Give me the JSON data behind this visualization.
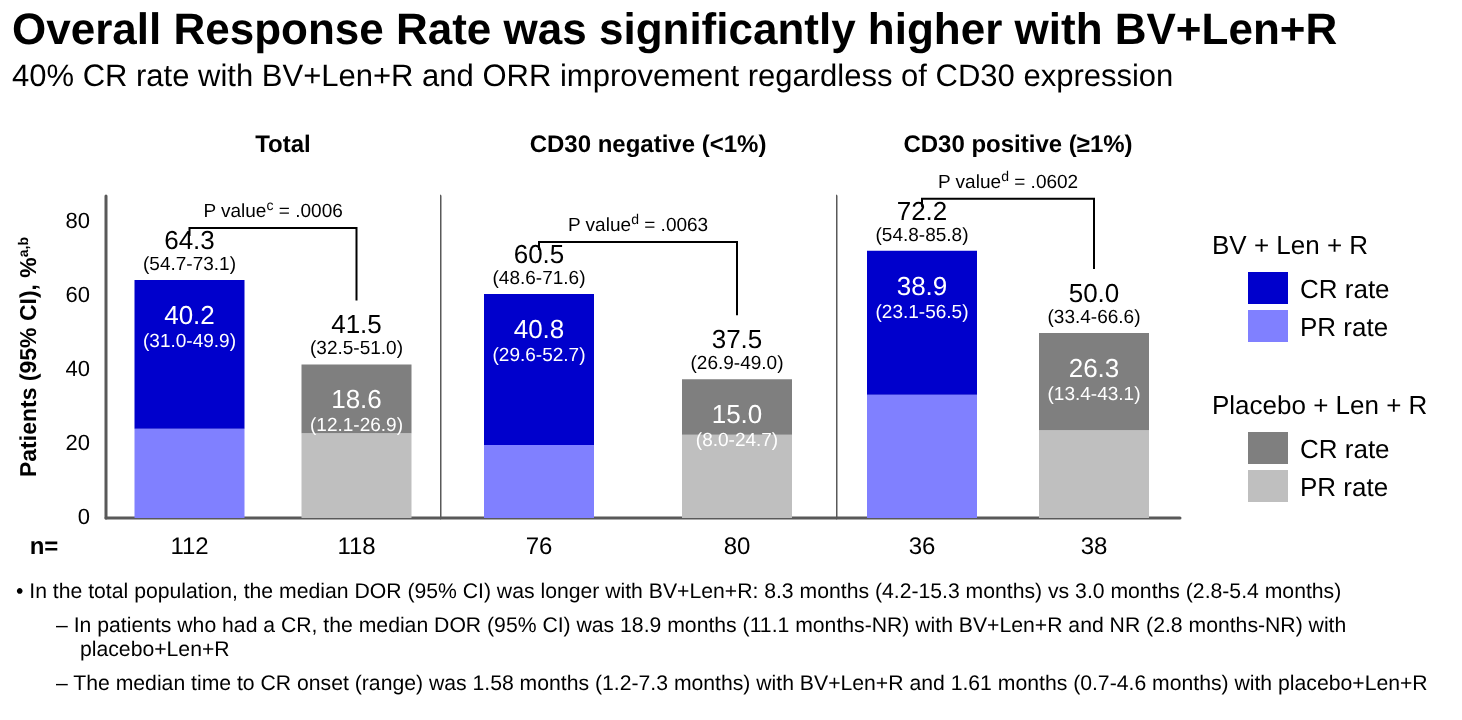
{
  "chart_data": [
    {
      "type": "other",
      "title": "Overall Response Rate was significantly higher with BV+Len+R",
      "subtitle": "40% CR rate with BV+Len+R and ORR improvement regardless of CD30 expression"
    },
    {
      "type": "bar",
      "title": "Total",
      "ylabel": "Patients (95% CI), %$^{a,b}$",
      "xlabel": "n=",
      "stacked": true,
      "categories": [
        "112",
        "118"
      ],
      "ylim": [
        0,
        87
      ],
      "yticks": [
        0,
        20,
        40,
        60,
        80
      ],
      "series": [
        {
          "color": "#8080ff",
          "values": [
            24.1,
            null
          ]
        },
        {
          "color": "#0000cc",
          "values": [
            40.2,
            null
          ],
          "value_labels": [
            "40.2\n(31.0-49.9)",
            null
          ]
        },
        {
          "color": "#bfbfbf",
          "values": [
            null,
            22.9
          ]
        },
        {
          "color": "#7f7f7f",
          "values": [
            null,
            18.6
          ],
          "value_labels": [
            null,
            "18.6\n(12.1-26.9)"
          ]
        }
      ],
      "totals": [
        "64.3\n(54.7-73.1)",
        "41.5\n(32.5-51.0)"
      ],
      "annotations": [
        "P value$^{c}$ = .0006"
      ]
    },
    {
      "type": "bar",
      "title": "CD30 negative (<1%)",
      "stacked": true,
      "categories": [
        "76",
        "80"
      ],
      "ylim": [
        0,
        87
      ],
      "yticks": [
        0,
        20,
        40,
        60,
        80
      ],
      "tick_labels": "x",
      "series": [
        {
          "color": "#8080ff",
          "values": [
            19.7,
            null
          ]
        },
        {
          "color": "#0000cc",
          "values": [
            40.8,
            null
          ],
          "value_labels": [
            "40.8\n(29.6-52.7)",
            null
          ]
        },
        {
          "color": "#bfbfbf",
          "values": [
            null,
            22.5
          ]
        },
        {
          "color": "#7f7f7f",
          "values": [
            null,
            15.0
          ],
          "value_labels": [
            null,
            "15.0\n(8.0-24.7)"
          ]
        }
      ],
      "totals": [
        "60.5\n(48.6-71.6)",
        "37.5\n(26.9-49.0)"
      ],
      "annotations": [
        "P value$^{d}$ = .0063"
      ]
    },
    {
      "type": "bar",
      "title": "CD30 positive (≥1%)",
      "stacked": true,
      "categories": [
        "36",
        "38"
      ],
      "ylim": [
        0,
        87
      ],
      "yticks": [
        0,
        20,
        40,
        60,
        80
      ],
      "tick_labels": "x",
      "legend": "right",
      "series": [
        {
          "name": "PR rate",
          "color": "#8080ff",
          "values": [
            33.3,
            null
          ]
        },
        {
          "name": "CR rate",
          "color": "#0000cc",
          "values": [
            38.9,
            null
          ],
          "value_labels": [
            "38.9\n(23.1-56.5)",
            null
          ]
        },
        {
          "name": "PR rate",
          "color": "#bfbfbf",
          "values": [
            null,
            23.7
          ]
        },
        {
          "name": "CR rate",
          "color": "#7f7f7f",
          "values": [
            null,
            26.3
          ],
          "value_labels": [
            null,
            "26.3\n(13.4-43.1)"
          ]
        }
      ],
      "totals": [
        "72.2\n(54.8-85.8)",
        "50.0\n(33.4-66.6)"
      ],
      "annotations": [
        "P value$^{d}$ = .0602",
        "BV + Len + R",
        "Placebo + Len + R"
      ]
    },
    {
      "type": "other",
      "annotations": [
        "• In the total population, the median DOR (95% CI) was longer with BV+Len+R: 8.3 months (4.2-15.3 months) vs 3.0 months (2.8-5.4 months)",
        "– In patients who had a CR, the median DOR (95% CI) was 18.9 months (11.1 months-NR) with BV+Len+R and NR (2.8 months-NR) with placebo+Len+R",
        "– The median time to CR onset (range) was 1.58 months (1.2-7.3 months) with BV+Len+R and 1.61 months (0.7-4.6 months) with placebo+Len+R"
      ]
    }
  ]
}
